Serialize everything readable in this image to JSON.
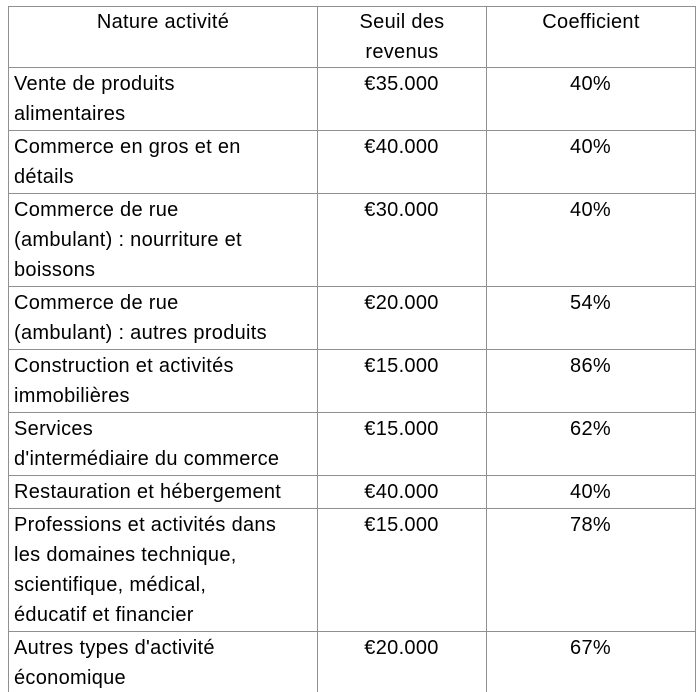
{
  "table": {
    "colors": {
      "border": "#909090",
      "text": "#000000",
      "background": "#ffffff"
    },
    "columns": [
      {
        "label": "Nature activité"
      },
      {
        "label": "Seuil des\nrevenus"
      },
      {
        "label": "Coefficient"
      }
    ],
    "rows": [
      {
        "activity": "Vente de produits\nalimentaires",
        "threshold": "€35.000",
        "coefficient": "40%"
      },
      {
        "activity": "Commerce en gros et en\ndétails",
        "threshold": "€40.000",
        "coefficient": "40%"
      },
      {
        "activity": "Commerce de rue\n(ambulant) : nourriture et\nboissons",
        "threshold": "€30.000",
        "coefficient": "40%"
      },
      {
        "activity": "Commerce de rue\n(ambulant) : autres produits",
        "threshold": "€20.000",
        "coefficient": "54%"
      },
      {
        "activity": "Construction et activités\nimmobilières",
        "threshold": "€15.000",
        "coefficient": "86%"
      },
      {
        "activity": "Services\nd'intermédiaire du commerce",
        "threshold": "€15.000",
        "coefficient": "62%"
      },
      {
        "activity": "Restauration et hébergement",
        "threshold": "€40.000",
        "coefficient": "40%"
      },
      {
        "activity": "Professions et activités dans\nles domaines technique,\nscientifique, médical,\néducatif et financier",
        "threshold": "€15.000",
        "coefficient": "78%"
      },
      {
        "activity": "Autres types d'activité\néconomique",
        "threshold": "€20.000",
        "coefficient": "67%"
      }
    ]
  }
}
